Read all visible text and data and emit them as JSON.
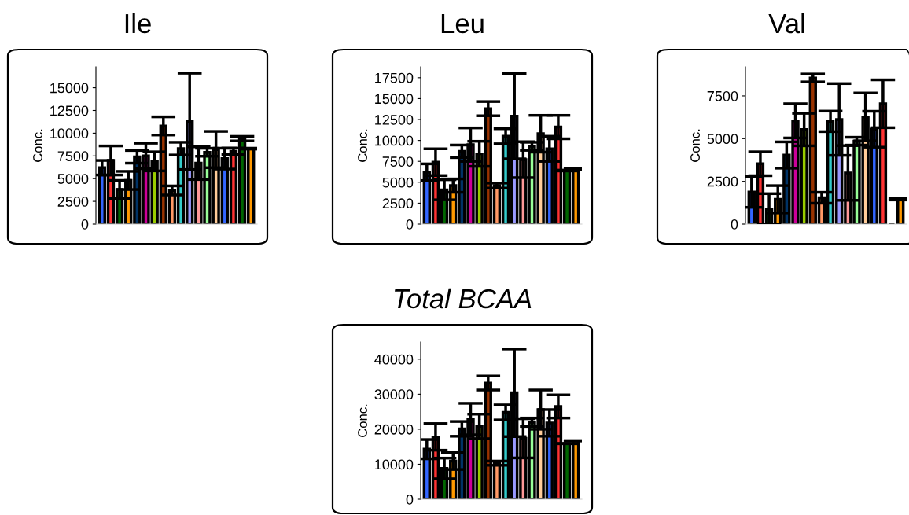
{
  "chart_data": [
    {
      "type": "bar",
      "title": "Ile",
      "ylabel": "Conc.",
      "categories": [
        null,
        null,
        null,
        null,
        null,
        null,
        null,
        null,
        null,
        null,
        null,
        null,
        null,
        null,
        null,
        null,
        null,
        null
      ],
      "values": [
        6200,
        7000,
        3800,
        4800,
        7400,
        7500,
        6900,
        10800,
        3700,
        8300,
        11300,
        6700,
        7900,
        8200,
        7200,
        8000,
        9400,
        8300
      ],
      "errors": [
        800,
        1600,
        1000,
        1000,
        700,
        1400,
        1050,
        1000,
        500,
        700,
        5300,
        1800,
        440,
        2000,
        1150,
        360,
        250,
        50
      ],
      "colors": [
        "#3366ff",
        "#ff3333",
        "#006600",
        "#ff9900",
        "#003366",
        "#cc0099",
        "#99cc00",
        "#993300",
        "#ff9966",
        "#33cccc",
        "#9999ff",
        "#ff9999",
        "#99ff99",
        "#ffcc99",
        "#3366ff",
        "#ff3333",
        "#006600",
        "#ff9900"
      ],
      "ylim": [
        0,
        17300
      ],
      "yticks": [
        0,
        2500,
        5000,
        7500,
        10000,
        12500,
        15000
      ],
      "tick_labels": "y",
      "grid": false,
      "legend": false
    },
    {
      "type": "bar",
      "title": "Leu",
      "ylabel": "Conc.",
      "categories": [
        null,
        null,
        null,
        null,
        null,
        null,
        null,
        null,
        null,
        null,
        null,
        null,
        null,
        null,
        null,
        null,
        null,
        null
      ],
      "values": [
        6200,
        7400,
        4100,
        4600,
        8700,
        9500,
        8400,
        13800,
        4600,
        10500,
        12900,
        7700,
        9300,
        10800,
        9000,
        11600,
        6400,
        6600
      ],
      "errors": [
        1000,
        1600,
        1200,
        800,
        750,
        2000,
        1500,
        850,
        300,
        900,
        5100,
        2150,
        480,
        2200,
        1500,
        1400,
        50,
        50
      ],
      "colors": [
        "#3366ff",
        "#ff3333",
        "#006600",
        "#ff9900",
        "#003366",
        "#cc0099",
        "#99cc00",
        "#993300",
        "#ff9966",
        "#33cccc",
        "#9999ff",
        "#ff9999",
        "#99ff99",
        "#ffcc99",
        "#3366ff",
        "#ff3333",
        "#006600",
        "#ff9900"
      ],
      "ylim": [
        0,
        18800
      ],
      "yticks": [
        0,
        2500,
        5000,
        7500,
        10000,
        12500,
        15000,
        17500
      ],
      "tick_labels": "y",
      "grid": false,
      "legend": false
    },
    {
      "type": "bar",
      "title": "Val",
      "ylabel": "Conc.",
      "categories": [
        null,
        null,
        null,
        null,
        null,
        null,
        null,
        null,
        null,
        null,
        null,
        null,
        null,
        null,
        null,
        null,
        null,
        null
      ],
      "values": [
        1880,
        3530,
        880,
        1450,
        4040,
        6040,
        5530,
        8550,
        1540,
        6010,
        6120,
        2990,
        4850,
        6270,
        5550,
        7040,
        0,
        1460
      ],
      "errors": [
        900,
        700,
        900,
        800,
        770,
        1000,
        950,
        230,
        320,
        600,
        2100,
        1600,
        230,
        1400,
        1050,
        1400,
        null,
        50
      ],
      "colors": [
        "#3366ff",
        "#ff3333",
        "#006600",
        "#ff9900",
        "#003366",
        "#cc0099",
        "#99cc00",
        "#993300",
        "#ff9966",
        "#33cccc",
        "#9999ff",
        "#ff9999",
        "#99ff99",
        "#ffcc99",
        "#3366ff",
        "#ff3333",
        "#000000",
        "#ff9900"
      ],
      "ylim": [
        0,
        9200
      ],
      "yticks": [
        0,
        2500,
        5000,
        7500
      ],
      "tick_labels": "y",
      "grid": false,
      "legend": false
    },
    {
      "type": "bar",
      "title": "Total BCAA",
      "ylabel": "Conc.",
      "categories": [
        null,
        null,
        null,
        null,
        null,
        null,
        null,
        null,
        null,
        null,
        null,
        null,
        null,
        null,
        null,
        null,
        null,
        null
      ],
      "values": [
        14300,
        17800,
        8800,
        10900,
        20100,
        22900,
        20800,
        33200,
        10300,
        24800,
        30400,
        17400,
        22000,
        25600,
        21800,
        26500,
        15900,
        16700
      ],
      "errors": [
        2750,
        3800,
        2950,
        2400,
        2100,
        4500,
        3500,
        2000,
        600,
        2150,
        12500,
        5600,
        1200,
        5600,
        3800,
        3300,
        50,
        50
      ],
      "colors": [
        "#3366ff",
        "#ff3333",
        "#006600",
        "#ff9900",
        "#003366",
        "#cc0099",
        "#99cc00",
        "#993300",
        "#ff9966",
        "#33cccc",
        "#9999ff",
        "#ff9999",
        "#99ff99",
        "#ffcc99",
        "#3366ff",
        "#ff3333",
        "#006600",
        "#ff9900"
      ],
      "ylim": [
        0,
        44900
      ],
      "yticks": [
        0,
        10000,
        20000,
        30000,
        40000
      ],
      "tick_labels": "y",
      "grid": false,
      "legend": false
    }
  ]
}
